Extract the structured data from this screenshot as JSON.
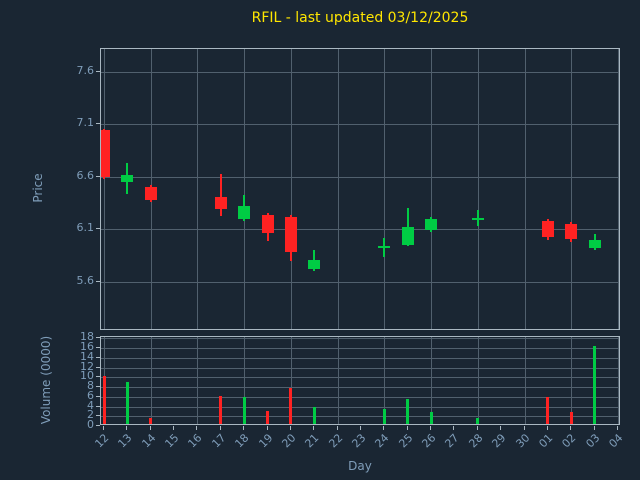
{
  "chart_data": {
    "type": "candlestick",
    "title": "RFIL - last updated 03/12/2025",
    "xlabel": "Day",
    "ylabel_price": "Price",
    "ylabel_volume": "Volume (0000)",
    "x_categories": [
      "12",
      "13",
      "14",
      "15",
      "16",
      "17",
      "18",
      "19",
      "20",
      "21",
      "22",
      "23",
      "24",
      "25",
      "26",
      "27",
      "28",
      "29",
      "30",
      "01",
      "02",
      "03",
      "04"
    ],
    "price_ticks": [
      7.6,
      7.1,
      6.6,
      6.1,
      5.6
    ],
    "price_range": [
      5.13,
      7.82
    ],
    "volume_ticks": [
      18,
      16,
      14,
      12,
      10,
      8,
      6,
      4,
      2,
      0
    ],
    "volume_range": [
      0,
      18.3
    ],
    "grid_x_every": 2,
    "legend": "none",
    "grid": "on",
    "candles": [
      {
        "day": "12",
        "open": 7.05,
        "high": 7.06,
        "low": 6.58,
        "close": 6.6,
        "volume": 10.3
      },
      {
        "day": "13",
        "open": 6.55,
        "high": 6.73,
        "low": 6.44,
        "close": 6.62,
        "volume": 9.0
      },
      {
        "day": "14",
        "open": 6.5,
        "high": 6.52,
        "low": 6.36,
        "close": 6.38,
        "volume": 1.6
      },
      {
        "day": "17",
        "open": 6.41,
        "high": 6.63,
        "low": 6.23,
        "close": 6.29,
        "volume": 6.2
      },
      {
        "day": "18",
        "open": 6.2,
        "high": 6.43,
        "low": 6.18,
        "close": 6.32,
        "volume": 6.0
      },
      {
        "day": "19",
        "open": 6.24,
        "high": 6.26,
        "low": 5.99,
        "close": 6.06,
        "volume": 3.1
      },
      {
        "day": "20",
        "open": 6.22,
        "high": 6.24,
        "low": 5.8,
        "close": 5.88,
        "volume": 7.8
      },
      {
        "day": "21",
        "open": 5.72,
        "high": 5.9,
        "low": 5.7,
        "close": 5.81,
        "volume": 3.9
      },
      {
        "day": "24",
        "open": 5.92,
        "high": 6.02,
        "low": 5.84,
        "close": 5.94,
        "volume": 3.5
      },
      {
        "day": "25",
        "open": 5.95,
        "high": 6.3,
        "low": 5.94,
        "close": 6.12,
        "volume": 5.6
      },
      {
        "day": "26",
        "open": 6.09,
        "high": 6.22,
        "low": 6.07,
        "close": 6.2,
        "volume": 2.9
      },
      {
        "day": "28",
        "open": 6.2,
        "high": 6.28,
        "low": 6.13,
        "close": 6.21,
        "volume": 1.6
      },
      {
        "day": "01",
        "open": 6.18,
        "high": 6.2,
        "low": 6.0,
        "close": 6.03,
        "volume": 6.0
      },
      {
        "day": "02",
        "open": 6.15,
        "high": 6.17,
        "low": 5.98,
        "close": 6.01,
        "volume": 2.9
      },
      {
        "day": "03",
        "open": 5.92,
        "high": 6.06,
        "low": 5.9,
        "close": 6.0,
        "volume": 16.4
      }
    ],
    "colors": {
      "background": "#1a2633",
      "grid": "#51606e",
      "spine": "#aab8c2",
      "title": "#ffe600",
      "label": "#7f9db9",
      "up": "#00cc44",
      "down": "#ff2222"
    }
  }
}
